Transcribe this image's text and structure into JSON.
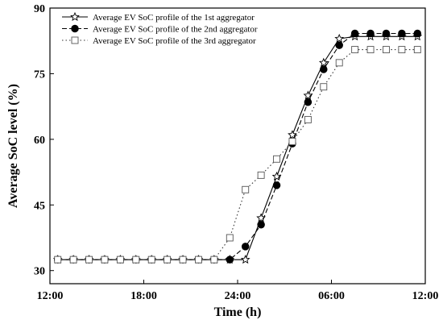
{
  "chart_data": {
    "type": "line",
    "title": "",
    "xlabel": "Time (h)",
    "ylabel": "Average SoC level (%)",
    "x_unit": "hour of day (starting 12:00, wrapping past midnight)",
    "xlim": [
      12,
      36
    ],
    "ylim": [
      27,
      90
    ],
    "xticks": [
      {
        "value": 12,
        "label": "12:00"
      },
      {
        "value": 18,
        "label": "18:00"
      },
      {
        "value": 24,
        "label": "24:00"
      },
      {
        "value": 30,
        "label": "06:00"
      },
      {
        "value": 36,
        "label": "12:00"
      }
    ],
    "yticks": [
      30,
      45,
      60,
      75,
      90
    ],
    "x": [
      12.5,
      13.5,
      14.5,
      15.5,
      16.5,
      17.5,
      18.5,
      19.5,
      20.5,
      21.5,
      22.5,
      23.5,
      24.5,
      25.5,
      26.5,
      27.5,
      28.5,
      29.5,
      30.5,
      31.5,
      32.5,
      33.5,
      34.5,
      35.5
    ],
    "legend_position": "top-left",
    "series": [
      {
        "name": "Average EV SoC profile of the 1st aggregator",
        "marker": "star",
        "line_style": "solid",
        "values": [
          32.5,
          32.5,
          32.5,
          32.5,
          32.5,
          32.5,
          32.5,
          32.5,
          32.5,
          32.5,
          32.5,
          32.5,
          32.5,
          42.0,
          51.5,
          61.0,
          70.0,
          77.5,
          83.0,
          83.5,
          83.5,
          83.5,
          83.5,
          83.5
        ]
      },
      {
        "name": "Average EV SoC profile of the 2nd aggregator",
        "marker": "filled-circle",
        "line_style": "dashed",
        "values": [
          32.5,
          32.5,
          32.5,
          32.5,
          32.5,
          32.5,
          32.5,
          32.5,
          32.5,
          32.5,
          32.5,
          32.5,
          35.5,
          40.5,
          49.5,
          59.0,
          68.5,
          76.0,
          81.5,
          84.2,
          84.2,
          84.2,
          84.2,
          84.2
        ]
      },
      {
        "name": "Average EV SoC profile of the 3rd aggregator",
        "marker": "open-square",
        "line_style": "dotted",
        "values": [
          32.5,
          32.5,
          32.5,
          32.5,
          32.5,
          32.5,
          32.5,
          32.5,
          32.5,
          32.5,
          32.5,
          37.5,
          48.5,
          51.8,
          55.5,
          59.5,
          64.5,
          72.0,
          77.5,
          80.5,
          80.5,
          80.5,
          80.5,
          80.5
        ]
      }
    ]
  }
}
